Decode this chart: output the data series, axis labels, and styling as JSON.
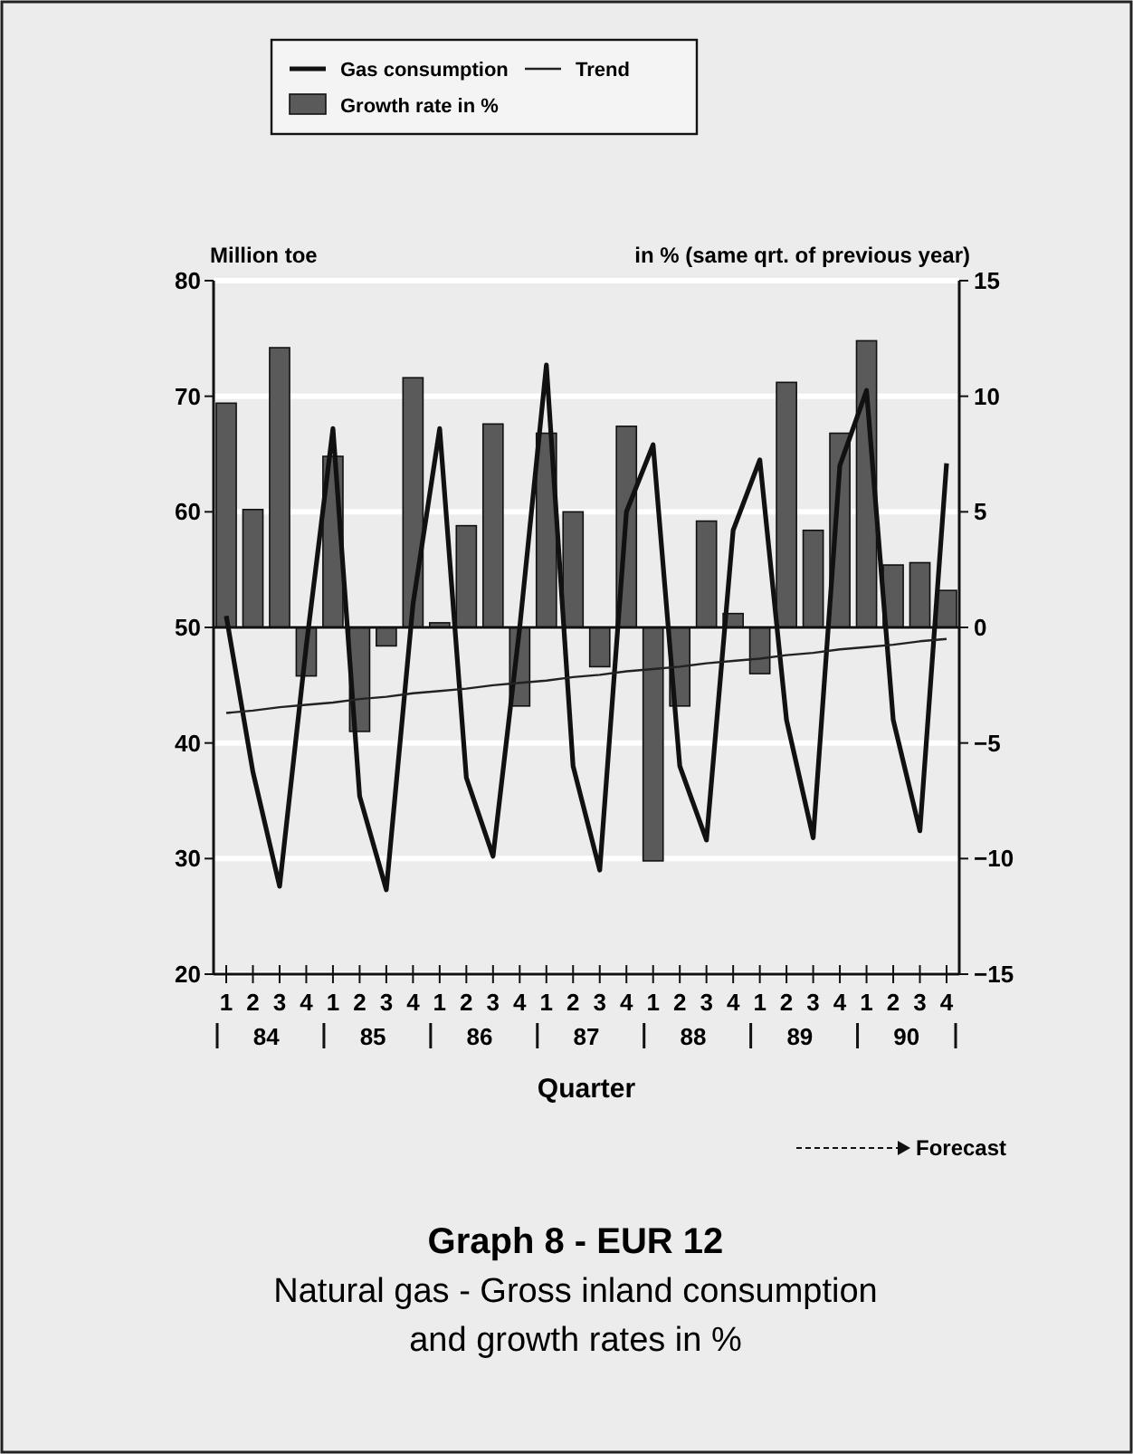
{
  "chart_data": {
    "type": "bar",
    "title": "Graph 8 - EUR 12",
    "subtitle": "Natural gas - Gross inland consumption and growth rates in %",
    "xlabel": "Quarter",
    "ylabel": "Million toe",
    "y2label": "in % (same qrt. of previous year)",
    "categories": [
      "1",
      "2",
      "3",
      "4",
      "1",
      "2",
      "3",
      "4",
      "1",
      "2",
      "3",
      "4",
      "1",
      "2",
      "3",
      "4",
      "1",
      "2",
      "3",
      "4",
      "1",
      "2",
      "3",
      "4",
      "1",
      "2",
      "3",
      "4"
    ],
    "series": [
      {
        "name": "Gas consumption",
        "type": "line",
        "color": "#111111",
        "values": [
          51,
          37.5,
          27.6,
          48.4,
          67.2,
          35.4,
          27.3,
          52,
          67.2,
          37,
          30.2,
          50,
          72.7,
          38,
          29,
          60,
          65.8,
          38,
          31.6,
          58.4,
          64.5,
          42,
          31.8,
          64,
          70.5,
          42,
          32.4,
          64.2
        ]
      },
      {
        "name": "Trend",
        "type": "line",
        "color": "#222222",
        "values": [
          42.6,
          42.8,
          43.1,
          43.3,
          43.5,
          43.8,
          44,
          44.3,
          44.5,
          44.7,
          45,
          45.2,
          45.4,
          45.7,
          45.9,
          46.2,
          46.4,
          46.6,
          46.9,
          47.1,
          47.3,
          47.6,
          47.8,
          48.1,
          48.3,
          48.5,
          48.8,
          49
        ]
      },
      {
        "name": "Growth rate in %",
        "axis": "y2",
        "color": "#5a5a5a",
        "values": [
          9.7,
          5.1,
          12.1,
          -2.1,
          7.4,
          -4.5,
          -0.8,
          10.8,
          0.2,
          4.4,
          8.8,
          -3.4,
          8.4,
          5,
          -1.7,
          8.7,
          -10.1,
          -3.4,
          4.6,
          0.6,
          -2,
          10.6,
          4.2,
          8.4,
          12.4,
          2.7,
          2.8,
          1.6
        ]
      }
    ],
    "ylim": [
      20,
      80
    ],
    "yticks": [
      20,
      30,
      40,
      50,
      60,
      70,
      80
    ],
    "y2lim": [
      -15,
      15
    ],
    "y2ticks": [
      -15,
      -10,
      -5,
      0,
      5,
      10,
      15
    ],
    "grid": "y",
    "legend": "top",
    "annotations": [
      "84",
      "85",
      "86",
      "87",
      "88",
      "89",
      "90",
      "Forecast"
    ]
  }
}
